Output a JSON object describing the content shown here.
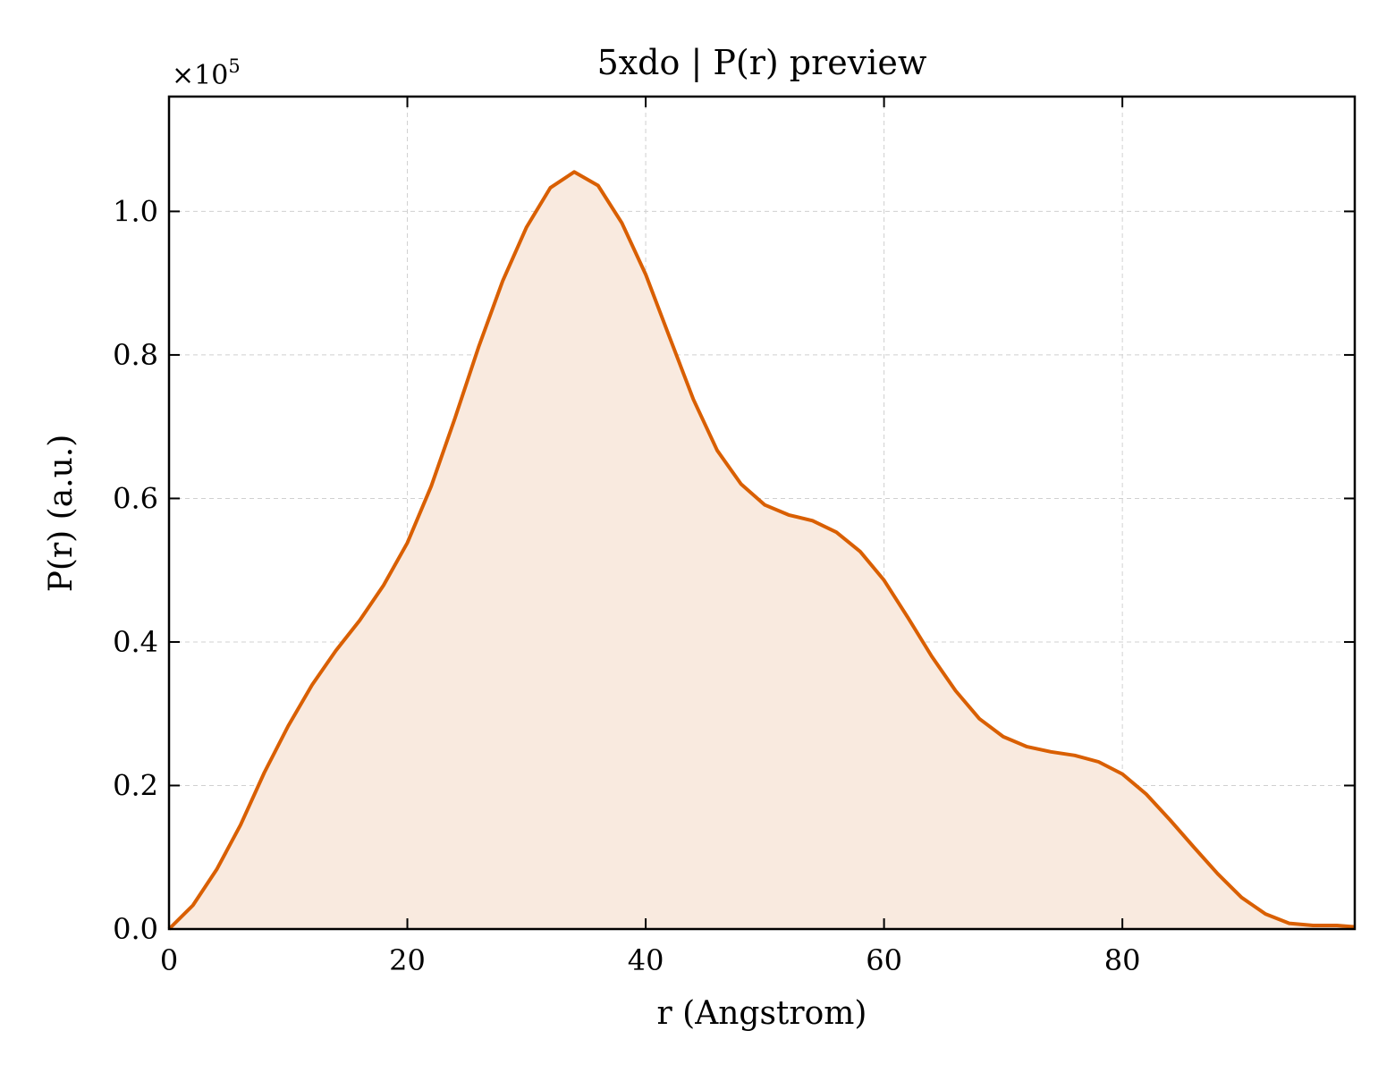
{
  "chart_data": {
    "type": "area",
    "title": "5xdo | P(r) preview",
    "xlabel": "r (Angstrom)",
    "ylabel": "P(r) (a.u.)",
    "y_multiplier": "×10",
    "y_multiplier_exponent": "5",
    "xlim": [
      0,
      99.5
    ],
    "ylim": [
      0,
      1.16
    ],
    "xticks": [
      0,
      20,
      40,
      60,
      80
    ],
    "xtick_labels": [
      "0",
      "20",
      "40",
      "60",
      "80"
    ],
    "yticks": [
      0.0,
      0.2,
      0.4,
      0.6,
      0.8,
      1.0
    ],
    "ytick_labels": [
      "0.0",
      "0.2",
      "0.4",
      "0.6",
      "0.8",
      "1.0"
    ],
    "grid": true,
    "line_color": "#d95f02",
    "fill_color": "#f9eadf",
    "series": [
      {
        "x": [
          0,
          2,
          4,
          6,
          8,
          10,
          12,
          14,
          16,
          18,
          20,
          22,
          24,
          26,
          28,
          30,
          32,
          34,
          36,
          38,
          40,
          42,
          44,
          46,
          48,
          50,
          52,
          54,
          56,
          58,
          60,
          62,
          64,
          66,
          68,
          70,
          72,
          74,
          76,
          78,
          80,
          82,
          84,
          86,
          88,
          90,
          92,
          94,
          96,
          98,
          99.5
        ],
        "y": [
          0.0,
          0.033,
          0.083,
          0.145,
          0.218,
          0.283,
          0.34,
          0.388,
          0.43,
          0.479,
          0.538,
          0.617,
          0.712,
          0.812,
          0.903,
          0.978,
          1.033,
          1.055,
          1.036,
          0.984,
          0.912,
          0.825,
          0.738,
          0.667,
          0.62,
          0.591,
          0.577,
          0.569,
          0.553,
          0.526,
          0.486,
          0.434,
          0.38,
          0.332,
          0.293,
          0.268,
          0.254,
          0.247,
          0.242,
          0.233,
          0.216,
          0.188,
          0.152,
          0.114,
          0.077,
          0.044,
          0.021,
          0.008,
          0.005,
          0.005,
          0.003
        ]
      }
    ]
  }
}
